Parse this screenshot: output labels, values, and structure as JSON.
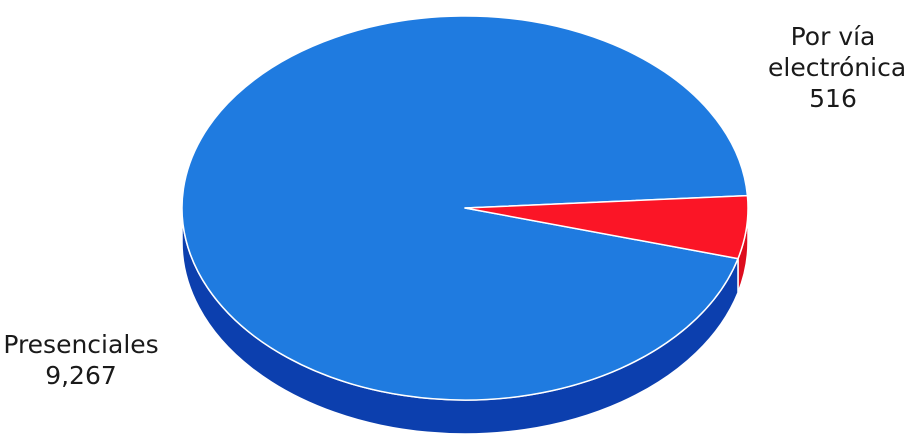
{
  "chart_data": {
    "type": "pie",
    "title": "",
    "categories": [
      "Presenciales",
      "Por vía electrónica"
    ],
    "values": [
      9267,
      516
    ],
    "value_labels": [
      "9,267",
      "516"
    ],
    "colors": {
      "Presenciales": {
        "top": "#1f7be0",
        "side": "#0c3fae"
      },
      "Por vía electrónica": {
        "top": "#fb1526",
        "side": "#dd0d1e"
      }
    },
    "style": "3d"
  },
  "labels": {
    "electronica": {
      "line1": "Por vía",
      "line2": "electrónica",
      "value": "516"
    },
    "presenciales": {
      "line1": "Presenciales",
      "value": "9,267"
    }
  }
}
